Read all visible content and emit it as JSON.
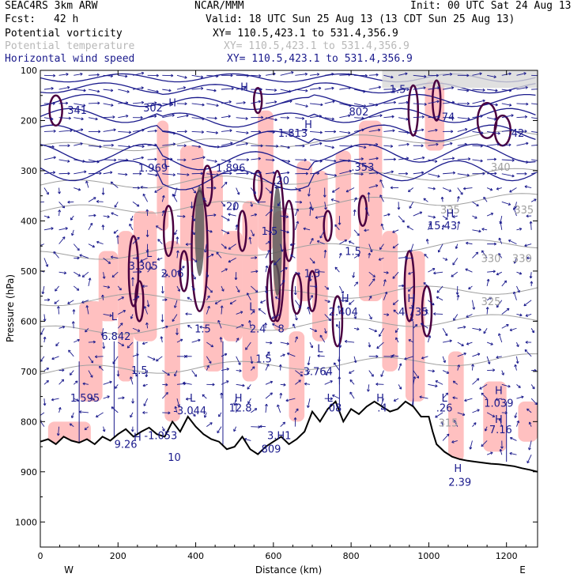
{
  "header": {
    "model": "SEAC4RS  3km ARW",
    "org": "NCAR/MMM",
    "init": "Init: 00 UTC Sat 24 Aug 13",
    "fcst_label": "Fcst:",
    "fcst_value": "42 h",
    "valid": "Valid: 18 UTC Sun 25 Aug 13 (13 CDT Sun 25 Aug 13)",
    "fields": [
      {
        "name": "Potential vorticity",
        "xy": "XY= 110.5,423.1 to 531.4,356.9",
        "color": "#000000"
      },
      {
        "name": "Potential temperature",
        "xy": "XY= 110.5,423.1 to 531.4,356.9",
        "color": "#b8b8b8"
      },
      {
        "name": "Horizontal wind speed",
        "xy": "XY= 110.5,423.1 to 531.4,356.9",
        "color": "#1a1a8c"
      }
    ]
  },
  "chart_data": {
    "type": "cross-section",
    "xlabel": "Distance (km)",
    "ylabel": "Pressure (hPa)",
    "xlim": [
      0,
      1280
    ],
    "ylim": [
      1050,
      100
    ],
    "x_ticks": [
      0,
      200,
      400,
      600,
      800,
      1000,
      1200
    ],
    "y_ticks": [
      100,
      200,
      300,
      400,
      500,
      600,
      700,
      800,
      900,
      1000
    ],
    "direction_labels": {
      "left": "W",
      "right": "E"
    },
    "terrain": {
      "x": [
        0,
        20,
        40,
        60,
        80,
        100,
        120,
        140,
        160,
        180,
        200,
        220,
        240,
        260,
        280,
        300,
        320,
        340,
        360,
        380,
        400,
        420,
        440,
        460,
        480,
        500,
        520,
        540,
        560,
        580,
        600,
        620,
        640,
        660,
        680,
        700,
        720,
        740,
        760,
        780,
        800,
        820,
        840,
        860,
        880,
        900,
        920,
        940,
        960,
        980,
        1000,
        1010,
        1020,
        1040,
        1060,
        1080,
        1100,
        1120,
        1140,
        1160,
        1180,
        1200,
        1220,
        1240,
        1260,
        1280
      ],
      "p": [
        840,
        835,
        845,
        830,
        838,
        842,
        835,
        845,
        830,
        838,
        825,
        815,
        830,
        820,
        812,
        825,
        830,
        800,
        820,
        790,
        810,
        825,
        835,
        840,
        855,
        850,
        830,
        855,
        865,
        850,
        840,
        830,
        845,
        835,
        820,
        780,
        800,
        775,
        760,
        800,
        775,
        785,
        770,
        760,
        770,
        780,
        775,
        760,
        770,
        790,
        790,
        820,
        845,
        860,
        870,
        875,
        878,
        880,
        882,
        884,
        885,
        887,
        889,
        893,
        896,
        900
      ]
    },
    "theta_labels": [
      {
        "text": "340",
        "x": 1185,
        "p": 300
      },
      {
        "text": "335",
        "x": 1055,
        "p": 385
      },
      {
        "text": "335",
        "x": 1245,
        "p": 385
      },
      {
        "text": "330",
        "x": 1160,
        "p": 482
      },
      {
        "text": "330",
        "x": 1240,
        "p": 482
      },
      {
        "text": "325",
        "x": 1160,
        "p": 568
      },
      {
        "text": "315",
        "x": 1050,
        "p": 810
      }
    ],
    "annotations": [
      {
        "text": "H",
        "x": 340,
        "p": 172,
        "color": "#1a1a8c"
      },
      {
        "text": "302",
        "x": 290,
        "p": 182,
        "color": "#1a1a8c"
      },
      {
        "text": "341",
        "x": 95,
        "p": 187,
        "color": "#1a1a8c"
      },
      {
        "text": "H",
        "x": 525,
        "p": 140,
        "color": "#1a1a8c"
      },
      {
        "text": "1.5",
        "x": 920,
        "p": 145,
        "color": "#1a1a8c"
      },
      {
        "text": "802",
        "x": 820,
        "p": 190,
        "color": "#1a1a8c"
      },
      {
        "text": "74",
        "x": 1050,
        "p": 200,
        "color": "#1a1a8c"
      },
      {
        "text": "H",
        "x": 690,
        "p": 215,
        "color": "#1a1a8c"
      },
      {
        "text": "1.813",
        "x": 650,
        "p": 232,
        "color": "#1a1a8c"
      },
      {
        "text": ".42",
        "x": 1225,
        "p": 232,
        "color": "#1a1a8c"
      },
      {
        "text": "L",
        "x": 325,
        "p": 292,
        "color": "#1a1a8c"
      },
      {
        "text": "1.969",
        "x": 290,
        "p": 302,
        "color": "#1a1a8c"
      },
      {
        "text": "1.896",
        "x": 490,
        "p": 302,
        "color": "#1a1a8c"
      },
      {
        "text": ".353",
        "x": 830,
        "p": 300,
        "color": "#1a1a8c"
      },
      {
        "text": ".20",
        "x": 620,
        "p": 327,
        "color": "#1a1a8c"
      },
      {
        "text": "20",
        "x": 495,
        "p": 378,
        "color": "#1a1a8c"
      },
      {
        "text": "H",
        "x": 1055,
        "p": 392,
        "color": "#1a1a8c"
      },
      {
        "text": "15.43",
        "x": 1035,
        "p": 417,
        "color": "#1a1a8c"
      },
      {
        "text": "1.5",
        "x": 590,
        "p": 428,
        "color": "#1a1a8c"
      },
      {
        "text": "1.5",
        "x": 805,
        "p": 468,
        "color": "#1a1a8c"
      },
      {
        "text": "L",
        "x": 280,
        "p": 472,
        "color": "#1a1a8c"
      },
      {
        "text": "3.305",
        "x": 265,
        "p": 497,
        "color": "#1a1a8c"
      },
      {
        "text": "2.06",
        "x": 340,
        "p": 512,
        "color": "#1a1a8c"
      },
      {
        "text": "1.5",
        "x": 700,
        "p": 512,
        "color": "#1a1a8c"
      },
      {
        "text": "H",
        "x": 785,
        "p": 562,
        "color": "#1a1a8c"
      },
      {
        "text": "H",
        "x": 955,
        "p": 562,
        "color": "#1a1a8c"
      },
      {
        "text": "L",
        "x": 545,
        "p": 578,
        "color": "#1a1a8c"
      },
      {
        "text": "2.404",
        "x": 780,
        "p": 588,
        "color": "#1a1a8c"
      },
      {
        "text": "4.735",
        "x": 960,
        "p": 588,
        "color": "#1a1a8c"
      },
      {
        "text": "L",
        "x": 190,
        "p": 598,
        "color": "#1a1a8c"
      },
      {
        "text": "1.5",
        "x": 418,
        "p": 622,
        "color": "#1a1a8c"
      },
      {
        "text": "2.4",
        "x": 560,
        "p": 622,
        "color": "#1a1a8c"
      },
      {
        "text": "8",
        "x": 620,
        "p": 622,
        "color": "#1a1a8c"
      },
      {
        "text": "6.842",
        "x": 195,
        "p": 637,
        "color": "#1a1a8c"
      },
      {
        "text": "L",
        "x": 720,
        "p": 662,
        "color": "#1a1a8c"
      },
      {
        "text": "1.5",
        "x": 575,
        "p": 682,
        "color": "#1a1a8c"
      },
      {
        "text": "1.5",
        "x": 255,
        "p": 705,
        "color": "#1a1a8c"
      },
      {
        "text": "-3.764",
        "x": 710,
        "p": 707,
        "color": "#1a1a8c"
      },
      {
        "text": "H",
        "x": 1180,
        "p": 745,
        "color": "#1a1a8c"
      },
      {
        "text": "1.595",
        "x": 115,
        "p": 760,
        "color": "#1a1a8c"
      },
      {
        "text": "L",
        "x": 392,
        "p": 760,
        "color": "#1a1a8c"
      },
      {
        "text": "H",
        "x": 510,
        "p": 760,
        "color": "#1a1a8c"
      },
      {
        "text": "L",
        "x": 745,
        "p": 760,
        "color": "#1a1a8c"
      },
      {
        "text": "H",
        "x": 875,
        "p": 760,
        "color": "#1a1a8c"
      },
      {
        "text": "L",
        "x": 1040,
        "p": 760,
        "color": "#1a1a8c"
      },
      {
        "text": "1.039",
        "x": 1180,
        "p": 770,
        "color": "#1a1a8c"
      },
      {
        "text": "-3.044",
        "x": 385,
        "p": 785,
        "color": "#1a1a8c"
      },
      {
        "text": "12.8",
        "x": 515,
        "p": 780,
        "color": "#1a1a8c"
      },
      {
        "text": ".08",
        "x": 755,
        "p": 780,
        "color": "#1a1a8c"
      },
      {
        "text": ".4",
        "x": 880,
        "p": 780,
        "color": "#1a1a8c"
      },
      {
        "text": ".26",
        "x": 1040,
        "p": 780,
        "color": "#1a1a8c"
      },
      {
        "text": "H",
        "x": 1180,
        "p": 803,
        "color": "#1a1a8c"
      },
      {
        "text": "7.16",
        "x": 1185,
        "p": 823,
        "color": "#1a1a8c"
      },
      {
        "text": "H",
        "x": 250,
        "p": 838,
        "color": "#1a1a8c"
      },
      {
        "text": "-1.053",
        "x": 310,
        "p": 835,
        "color": "#1a1a8c"
      },
      {
        "text": "3.H1",
        "x": 615,
        "p": 835,
        "color": "#1a1a8c"
      },
      {
        "text": "9.26",
        "x": 220,
        "p": 852,
        "color": "#1a1a8c"
      },
      {
        "text": ".809",
        "x": 590,
        "p": 862,
        "color": "#1a1a8c"
      },
      {
        "text": "10",
        "x": 345,
        "p": 878,
        "color": "#1a1a8c"
      },
      {
        "text": "H",
        "x": 1075,
        "p": 900,
        "color": "#1a1a8c"
      },
      {
        "text": "2.39",
        "x": 1080,
        "p": 928,
        "color": "#1a1a8c"
      }
    ]
  }
}
